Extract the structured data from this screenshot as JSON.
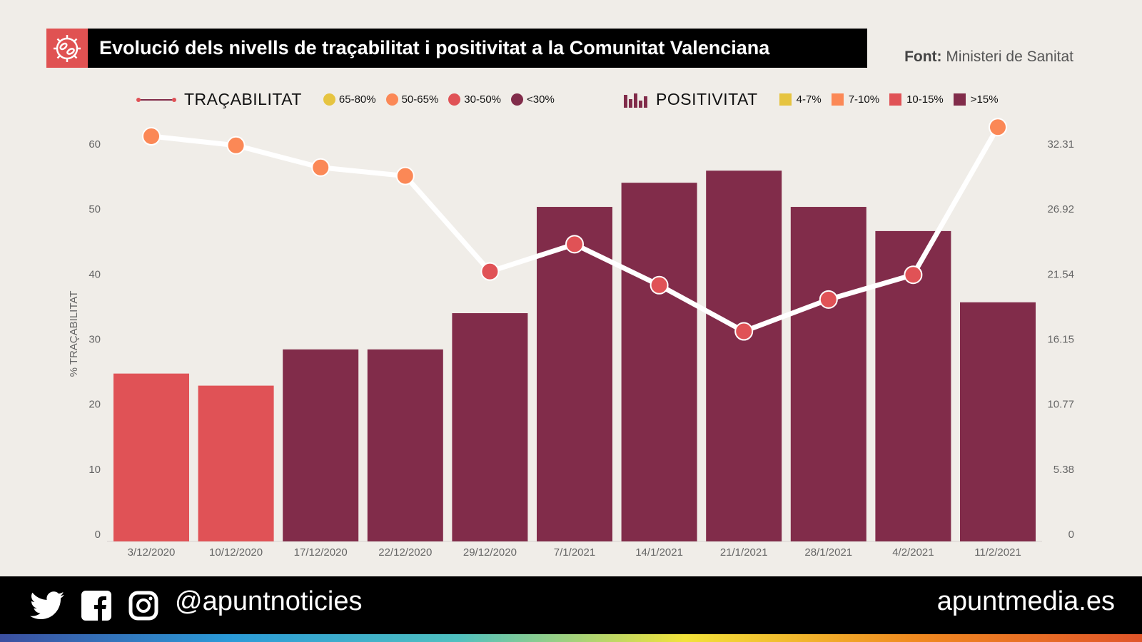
{
  "header": {
    "title": "Evolució dels nivells de traçabilitat i positivitat a la Comunitat Valenciana",
    "source_label": "Font:",
    "source_value": "Ministeri de Sanitat"
  },
  "legend": {
    "tracability_title": "TRAÇABILITAT",
    "tracability_items": [
      {
        "label": "65-80%",
        "color": "#e6c440"
      },
      {
        "label": "50-65%",
        "color": "#fb8856"
      },
      {
        "label": "30-50%",
        "color": "#e05256"
      },
      {
        "label": "<30%",
        "color": "#812c4a"
      }
    ],
    "positivity_title": "POSITIVITAT",
    "positivity_items": [
      {
        "label": "4-7%",
        "color": "#e6c440"
      },
      {
        "label": "7-10%",
        "color": "#fb8856"
      },
      {
        "label": "10-15%",
        "color": "#e05256"
      },
      {
        "label": ">15%",
        "color": "#812c4a"
      }
    ]
  },
  "chart_data": {
    "type": "bar+line",
    "title": "Evolució dels nivells de traçabilitat i positivitat a la Comunitat Valenciana",
    "categories": [
      "3/12/2020",
      "10/12/2020",
      "17/12/2020",
      "22/12/2020",
      "29/12/2020",
      "7/1/2021",
      "14/1/2021",
      "21/1/2021",
      "28/1/2021",
      "4/2/2021",
      "11/2/2021"
    ],
    "ylabel": "% TRAÇABILITAT",
    "ylim": [
      0,
      60
    ],
    "yticks": [
      "0",
      "10",
      "20",
      "30",
      "40",
      "50",
      "60"
    ],
    "y2lim": [
      0,
      32.31
    ],
    "y2ticks": [
      "0",
      "5.38",
      "10.77",
      "16.15",
      "21.54",
      "26.92",
      "32.31"
    ],
    "series": [
      {
        "name": "POSITIVITAT",
        "type": "bar",
        "axis": "right",
        "values": [
          13.9,
          12.9,
          15.9,
          15.9,
          18.9,
          27.7,
          29.7,
          30.7,
          27.7,
          25.7,
          19.8
        ],
        "colors": [
          "#e05256",
          "#e05256",
          "#812c4a",
          "#812c4a",
          "#812c4a",
          "#812c4a",
          "#812c4a",
          "#812c4a",
          "#812c4a",
          "#812c4a",
          "#812c4a"
        ]
      },
      {
        "name": "TRAÇABILITAT",
        "type": "line",
        "axis": "left",
        "values": [
          62.3,
          60.9,
          57.5,
          56.2,
          41.5,
          45.7,
          39.4,
          32.3,
          37.2,
          41.0,
          63.7
        ],
        "colors": [
          "#fb8856",
          "#fb8856",
          "#fb8856",
          "#fb8856",
          "#e05256",
          "#e05256",
          "#e05256",
          "#e05256",
          "#e05256",
          "#e05256",
          "#fb8856"
        ]
      }
    ],
    "grid": false,
    "legend_position": "top"
  },
  "footer": {
    "handle": "@apuntnoticies",
    "site": "apuntmedia.es"
  }
}
